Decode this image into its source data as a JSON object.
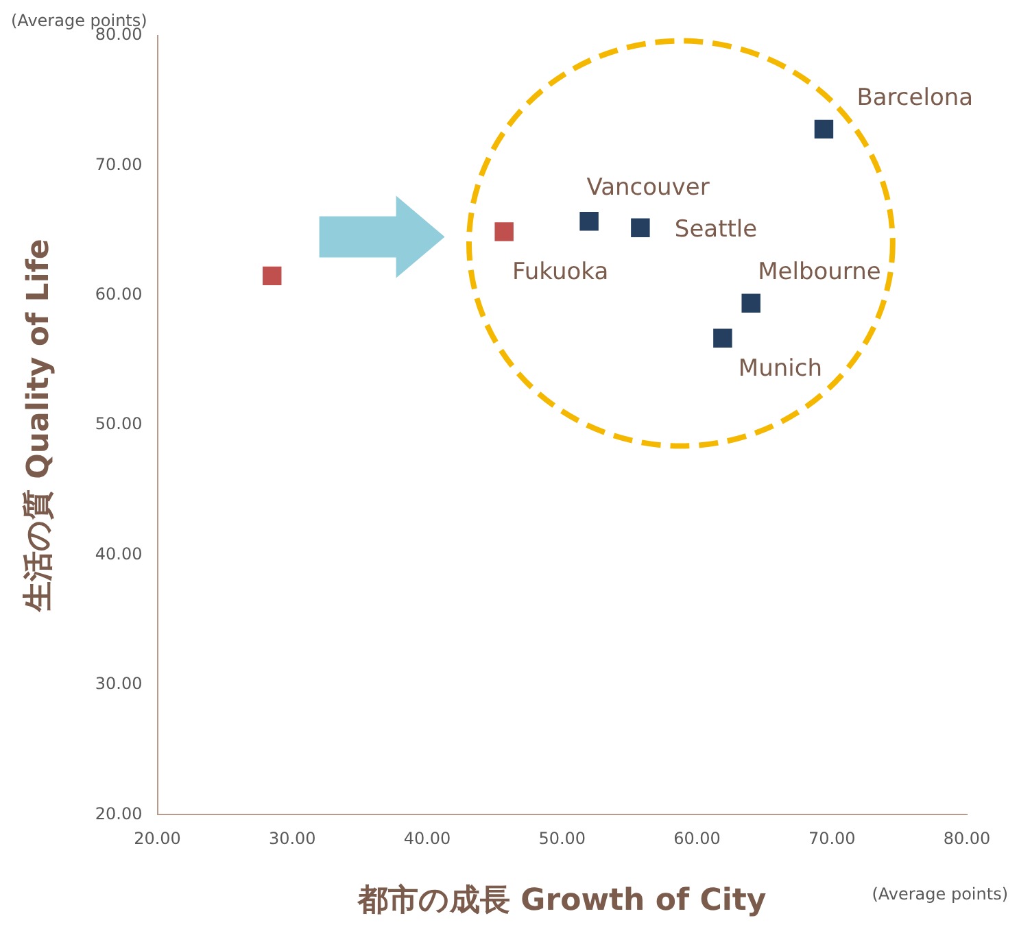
{
  "chart_data": {
    "type": "scatter",
    "xlabel": "都市の成長 Growth of City",
    "ylabel": "生活の質 Quality of Life",
    "x": [
      28.5,
      45.7,
      52.0,
      55.8,
      64.0,
      61.9,
      69.4
    ],
    "values": [
      61.5,
      64.9,
      65.7,
      65.2,
      59.4,
      56.7,
      72.8
    ],
    "colors": [
      "#c0504d",
      "#c0504d",
      "#243f60",
      "#243f60",
      "#243f60",
      "#243f60",
      "#243f60"
    ],
    "marker": "square",
    "grid": false,
    "legend": false,
    "xlim": [
      20,
      80
    ],
    "ylim": [
      20,
      80
    ],
    "xticks": [
      {
        "value": 20,
        "label": "20.00"
      },
      {
        "value": 30,
        "label": "30.00"
      },
      {
        "value": 40,
        "label": "40.00"
      },
      {
        "value": 50,
        "label": "50.00"
      },
      {
        "value": 60,
        "label": "60.00"
      },
      {
        "value": 70,
        "label": "70.00"
      },
      {
        "value": 80,
        "label": "80.00"
      }
    ],
    "yticks": [
      {
        "value": 20,
        "label": "20.00"
      },
      {
        "value": 30,
        "label": "30.00"
      },
      {
        "value": 40,
        "label": "40.00"
      },
      {
        "value": 50,
        "label": "50.00"
      },
      {
        "value": 60,
        "label": "60.00"
      },
      {
        "value": 70,
        "label": "70.00"
      },
      {
        "value": 80,
        "label": "80.00"
      }
    ],
    "annotations": [
      "(Average points)",
      "(Average points)",
      {
        "text": "Fukuoka",
        "x": 45.7,
        "y": 64.9
      },
      {
        "text": "Vancouver",
        "x": 52.0,
        "y": 65.7
      },
      {
        "text": "Seattle",
        "x": 55.8,
        "y": 65.2
      },
      {
        "text": "Melbourne",
        "x": 64.0,
        "y": 59.4
      },
      {
        "text": "Munich",
        "x": 61.9,
        "y": 56.7
      },
      {
        "text": "Barcelona",
        "x": 69.4,
        "y": 72.8
      }
    ]
  }
}
